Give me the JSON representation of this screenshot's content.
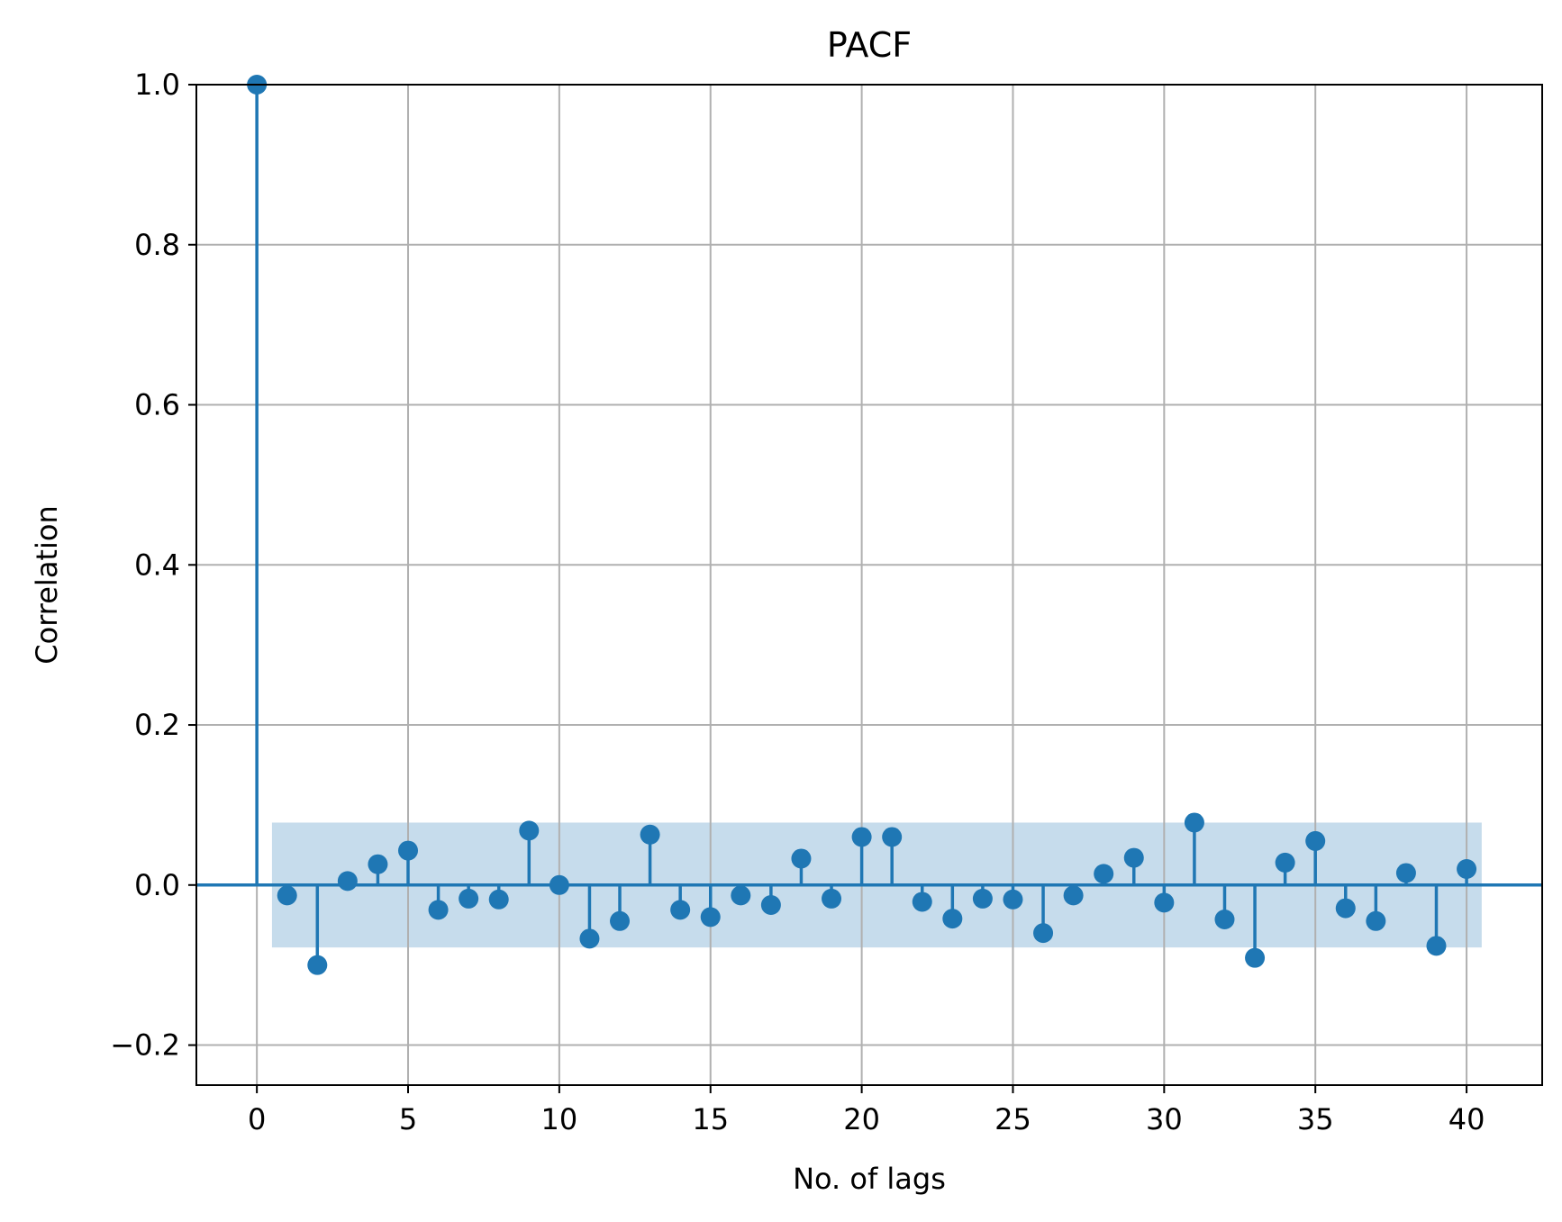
{
  "chart_data": {
    "type": "stem",
    "title": "PACF",
    "xlabel": "No. of lags",
    "ylabel": "Correlation",
    "xlim": [
      -2,
      42.5
    ],
    "ylim": [
      -0.25,
      1.0
    ],
    "xticks": [
      0,
      5,
      10,
      15,
      20,
      25,
      30,
      35,
      40
    ],
    "xtick_labels": [
      "0",
      "5",
      "10",
      "15",
      "20",
      "25",
      "30",
      "35",
      "40"
    ],
    "yticks": [
      -0.2,
      0.0,
      0.2,
      0.4,
      0.6,
      0.8,
      1.0
    ],
    "ytick_labels": [
      "−0.2",
      "0.0",
      "0.2",
      "0.4",
      "0.6",
      "0.8",
      "1.0"
    ],
    "grid": true,
    "confidence_band": {
      "x_start": 0.5,
      "x_end": 40.5,
      "lower": -0.078,
      "upper": 0.078
    },
    "colors": {
      "series": "#1f77b4",
      "band": "#c6dcec",
      "grid": "#b0b0b0"
    },
    "x": [
      0,
      1,
      2,
      3,
      4,
      5,
      6,
      7,
      8,
      9,
      10,
      11,
      12,
      13,
      14,
      15,
      16,
      17,
      18,
      19,
      20,
      21,
      22,
      23,
      24,
      25,
      26,
      27,
      28,
      29,
      30,
      31,
      32,
      33,
      34,
      35,
      36,
      37,
      38,
      39,
      40
    ],
    "values": [
      1.0,
      -0.013,
      -0.1,
      0.005,
      0.026,
      0.043,
      -0.031,
      -0.017,
      -0.018,
      0.068,
      0.0,
      -0.067,
      -0.045,
      0.063,
      -0.031,
      -0.04,
      -0.013,
      -0.025,
      0.033,
      -0.017,
      0.06,
      0.06,
      -0.021,
      -0.042,
      -0.017,
      -0.018,
      -0.06,
      -0.013,
      0.014,
      0.034,
      -0.022,
      0.078,
      -0.043,
      -0.091,
      0.028,
      0.055,
      -0.029,
      -0.045,
      0.015,
      -0.076,
      0.02
    ]
  }
}
